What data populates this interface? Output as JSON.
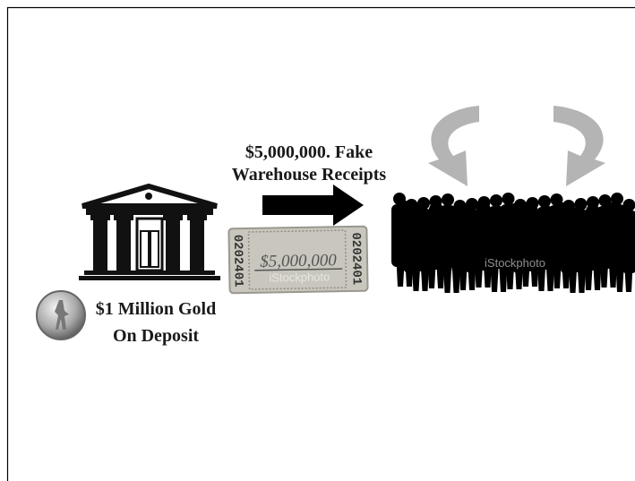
{
  "receipts_label": [
    "$5,000,000. Fake",
    "Warehouse Receipts"
  ],
  "gold_label": [
    "$1 Million Gold",
    "On Deposit"
  ],
  "ticket": {
    "serial_left": "0202401",
    "amount": "$5,000,000",
    "serial_right": "0202401",
    "watermark": "iStockphoto"
  },
  "crowd_watermark": "iStockphoto"
}
